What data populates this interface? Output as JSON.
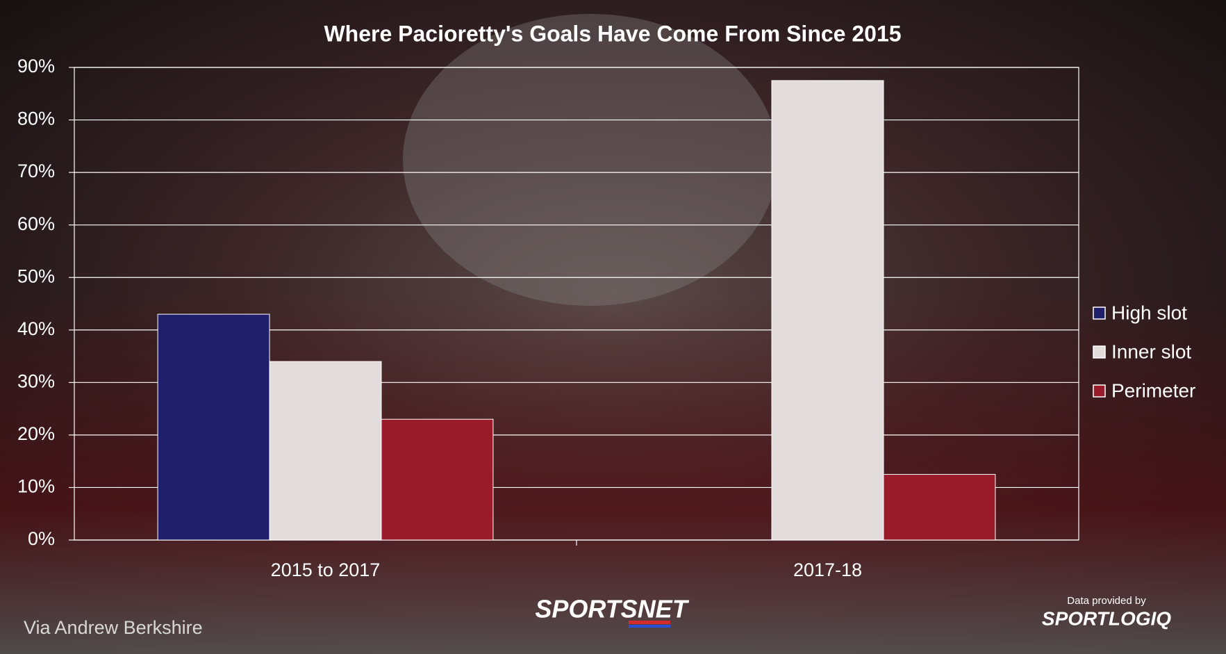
{
  "chart_data": {
    "type": "bar",
    "title": "Where Pacioretty's Goals Have Come From Since 2015",
    "categories": [
      "2015 to 2017",
      "2017-18"
    ],
    "series": [
      {
        "name": "High slot",
        "color": "#1f1f6b",
        "values": [
          43,
          0
        ]
      },
      {
        "name": "Inner slot",
        "color": "#e2dcdc",
        "values": [
          34,
          87.5
        ]
      },
      {
        "name": "Perimeter",
        "color": "#9a1b2a",
        "values": [
          23,
          12.5
        ]
      }
    ],
    "ylim": [
      0,
      90
    ],
    "yticks": [
      {
        "value": 0,
        "label": "0%"
      },
      {
        "value": 10,
        "label": "10%"
      },
      {
        "value": 20,
        "label": "20%"
      },
      {
        "value": 30,
        "label": "30%"
      },
      {
        "value": 40,
        "label": "40%"
      },
      {
        "value": 50,
        "label": "50%"
      },
      {
        "value": 60,
        "label": "60%"
      },
      {
        "value": 70,
        "label": "70%"
      },
      {
        "value": 80,
        "label": "80%"
      },
      {
        "value": 90,
        "label": "90%"
      }
    ],
    "grid": true,
    "legend": "right"
  },
  "credits": {
    "author": "Via Andrew Berkshire",
    "brand": "SPORTSNET",
    "provider_note": "Data provided by",
    "provider": "SPORTLOGIQ"
  }
}
